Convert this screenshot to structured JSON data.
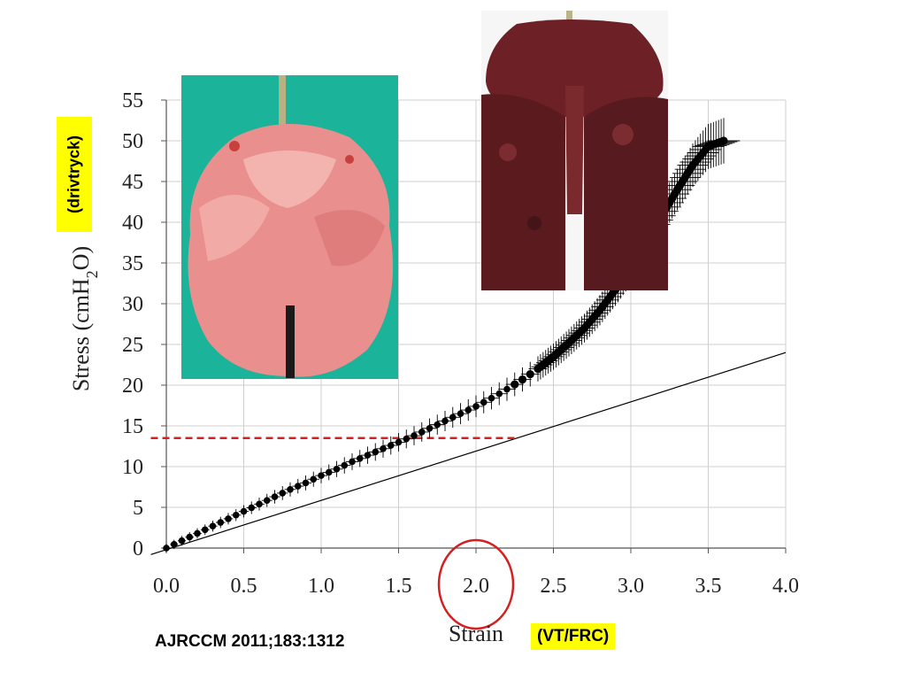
{
  "citation": "AJRCCM 2011;183:1312",
  "ylabel_highlight": "(drivtryck)",
  "xlabel_highlight": "(VT/FRC)",
  "photos": [
    {
      "name": "photo-healthy-lung",
      "colors": {
        "background": "#1bb39a",
        "tissue": "#e98f8d"
      }
    },
    {
      "name": "photo-injured-lung",
      "colors": {
        "background": "#f6f6f6",
        "tissue": "#5a1a1e"
      }
    }
  ],
  "chart_data": {
    "type": "scatter",
    "xlabel": "Strain",
    "ylabel": "Stress (cmH2O)",
    "xlim": [
      0.0,
      4.0
    ],
    "ylim": [
      0,
      55
    ],
    "x_ticks": [
      "0.0",
      "0.5",
      "1.0",
      "1.5",
      "2.0",
      "2.5",
      "3.0",
      "3.5",
      "4.0"
    ],
    "y_ticks": [
      "0",
      "5",
      "10",
      "15",
      "20",
      "25",
      "30",
      "35",
      "40",
      "45",
      "50",
      "55"
    ],
    "grid": true,
    "series": [
      {
        "marker": "filled-circle-with-error-bars",
        "color": "#000000",
        "x": [
          0.0,
          0.1,
          0.2,
          0.3,
          0.4,
          0.5,
          0.6,
          0.7,
          0.8,
          0.9,
          1.0,
          1.1,
          1.2,
          1.3,
          1.4,
          1.5,
          1.6,
          1.7,
          1.8,
          1.9,
          2.0,
          2.1,
          2.2,
          2.3,
          2.4,
          2.5,
          2.6,
          2.7,
          2.8,
          2.9,
          3.0,
          3.1,
          3.2,
          3.3,
          3.4,
          3.5,
          3.6
        ],
        "y": [
          0.0,
          0.9,
          1.8,
          2.7,
          3.6,
          4.5,
          5.4,
          6.3,
          7.2,
          8.0,
          8.9,
          9.7,
          10.6,
          11.4,
          12.2,
          13.0,
          13.8,
          14.7,
          15.6,
          16.5,
          17.4,
          18.4,
          19.5,
          20.7,
          22.0,
          23.5,
          25.2,
          27.0,
          29.2,
          31.7,
          34.5,
          37.6,
          40.8,
          44.0,
          47.0,
          49.3,
          50.0
        ]
      }
    ],
    "linear_reference": {
      "x": [
        -0.1,
        4.0
      ],
      "y": [
        -0.8,
        24.0
      ],
      "color": "#000000"
    },
    "threshold_line": {
      "x": [
        -0.1,
        2.25
      ],
      "y": [
        13.5,
        13.5
      ],
      "color": "#d42020",
      "style": "dashed"
    },
    "highlight_circle": {
      "x": 2.0,
      "color": "#d42020"
    }
  }
}
